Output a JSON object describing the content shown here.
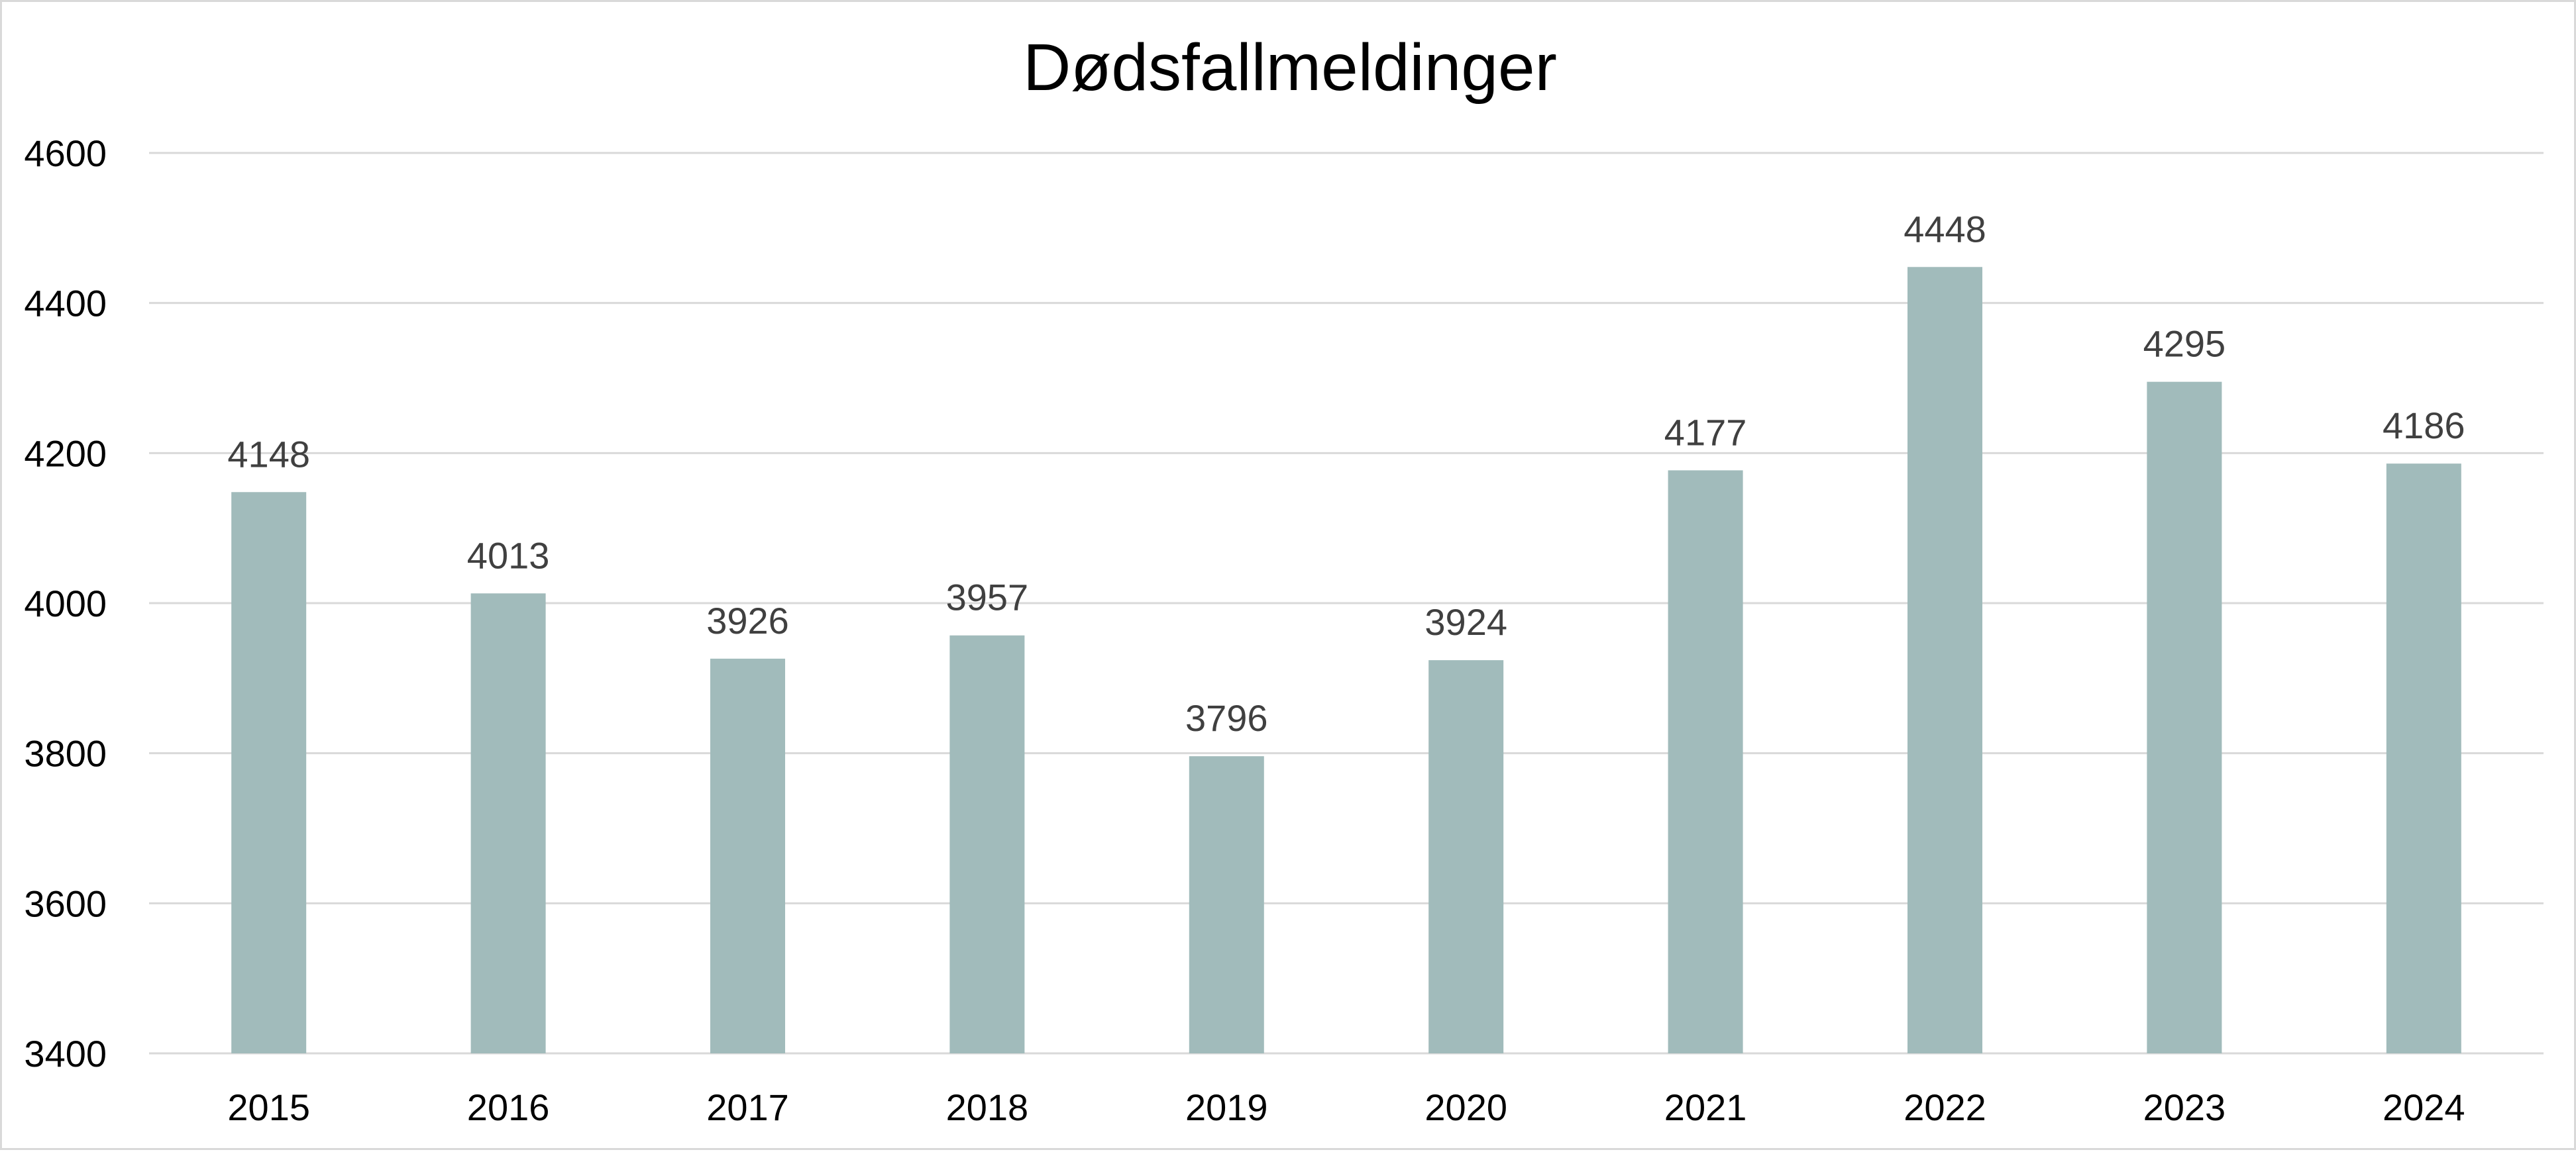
{
  "chart_data": {
    "type": "bar",
    "title": "Dødsfallmeldinger",
    "xlabel": "",
    "ylabel": "",
    "categories": [
      "2015",
      "2016",
      "2017",
      "2018",
      "2019",
      "2020",
      "2021",
      "2022",
      "2023",
      "2024"
    ],
    "values": [
      4148,
      4013,
      3926,
      3957,
      3796,
      3924,
      4177,
      4448,
      4295,
      4186
    ],
    "ylim": [
      3400,
      4600
    ],
    "yticks": [
      3400,
      3600,
      3800,
      4000,
      4200,
      4400,
      4600
    ],
    "data_labels": true,
    "grid": true,
    "legend": "none",
    "bar_color": "#a1bbbb"
  }
}
